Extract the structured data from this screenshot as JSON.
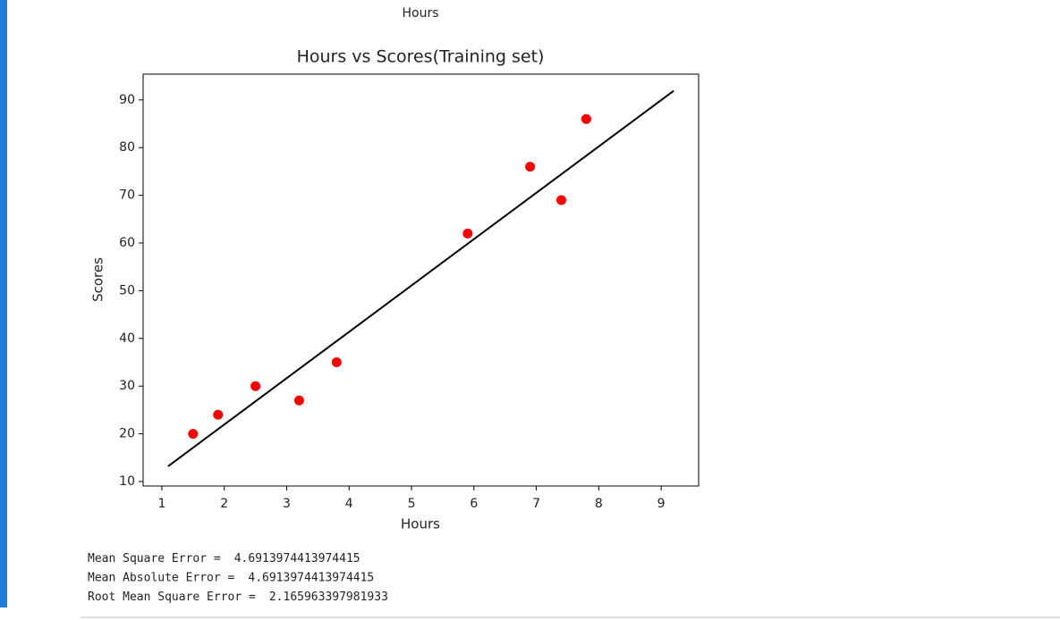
{
  "top_label": "Hours",
  "chart_data": {
    "type": "scatter",
    "title": "Hours vs Scores(Training set)",
    "x_label": "Hours",
    "y_label": "Scores",
    "xlim": [
      0.7,
      9.6
    ],
    "ylim": [
      9.06,
      95.4
    ],
    "xticks": [
      1,
      2,
      3,
      4,
      5,
      6,
      7,
      8,
      9
    ],
    "yticks": [
      10,
      20,
      30,
      40,
      50,
      60,
      70,
      80,
      90
    ],
    "series": [
      {
        "type": "scatter",
        "color": "#ff0000",
        "x": [
          1.5,
          1.9,
          2.5,
          3.2,
          3.8,
          5.9,
          6.9,
          7.4,
          7.8
        ],
        "values": [
          20,
          24,
          30,
          27,
          35,
          62,
          76,
          69,
          86
        ]
      },
      {
        "type": "line",
        "color": "#000000",
        "x": [
          1.1,
          9.2
        ],
        "values": [
          13.2,
          91.9
        ]
      }
    ]
  },
  "metrics": [
    {
      "label": "Mean Square Error =",
      "value": "4.6913974413974415"
    },
    {
      "label": "Mean Absolute Error =",
      "value": "4.6913974413974415"
    },
    {
      "label": "Root Mean Square Error =",
      "value": "2.165963397981933"
    }
  ]
}
